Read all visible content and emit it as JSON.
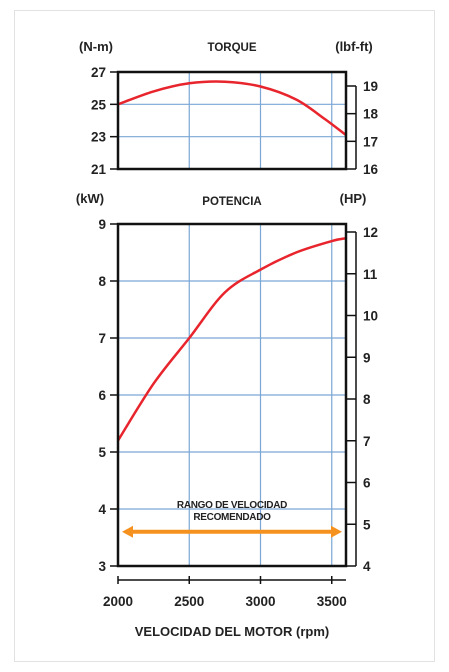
{
  "chart_data": [
    {
      "type": "line",
      "title": "TORQUE",
      "ylabel": "(N-m)",
      "ylabel_right": "(lbf-ft)",
      "x": [
        2000,
        2250,
        2500,
        2750,
        3000,
        3250,
        3450,
        3600
      ],
      "series": [
        {
          "values": [
            25.0,
            25.8,
            26.3,
            26.4,
            26.1,
            25.3,
            24.1,
            23.1
          ],
          "color": "#e8242c"
        }
      ],
      "xlim": [
        2000,
        3600
      ],
      "ylim": [
        21,
        27
      ],
      "yticks": [
        "21",
        "23",
        "25",
        "27"
      ],
      "yticks_right": [
        "16",
        "17",
        "18",
        "19"
      ],
      "grid": true
    },
    {
      "type": "line",
      "title": "POTENCIA",
      "ylabel": "(kW)",
      "ylabel_right": "(HP)",
      "xlabel": "VELOCIDAD DEL MOTOR (rpm)",
      "x": [
        2000,
        2250,
        2500,
        2750,
        3000,
        3250,
        3500,
        3600
      ],
      "series": [
        {
          "values": [
            5.2,
            6.2,
            7.0,
            7.8,
            8.2,
            8.5,
            8.7,
            8.75
          ],
          "color": "#e8242c"
        }
      ],
      "xlim": [
        2000,
        3600
      ],
      "ylim": [
        3,
        9
      ],
      "xticks": [
        "2000",
        "2500",
        "3000",
        "3500"
      ],
      "yticks": [
        "3",
        "4",
        "5",
        "6",
        "7",
        "8",
        "9"
      ],
      "yticks_right": [
        "4",
        "5",
        "6",
        "7",
        "8",
        "9",
        "10",
        "11",
        "12"
      ],
      "grid": true,
      "annotation": {
        "text_line1": "RANGO DE VELOCIDAD",
        "text_line2": "RECOMENDADO",
        "x_range": [
          2000,
          3600
        ],
        "y": 3.6,
        "color": "#f5921f"
      }
    }
  ]
}
